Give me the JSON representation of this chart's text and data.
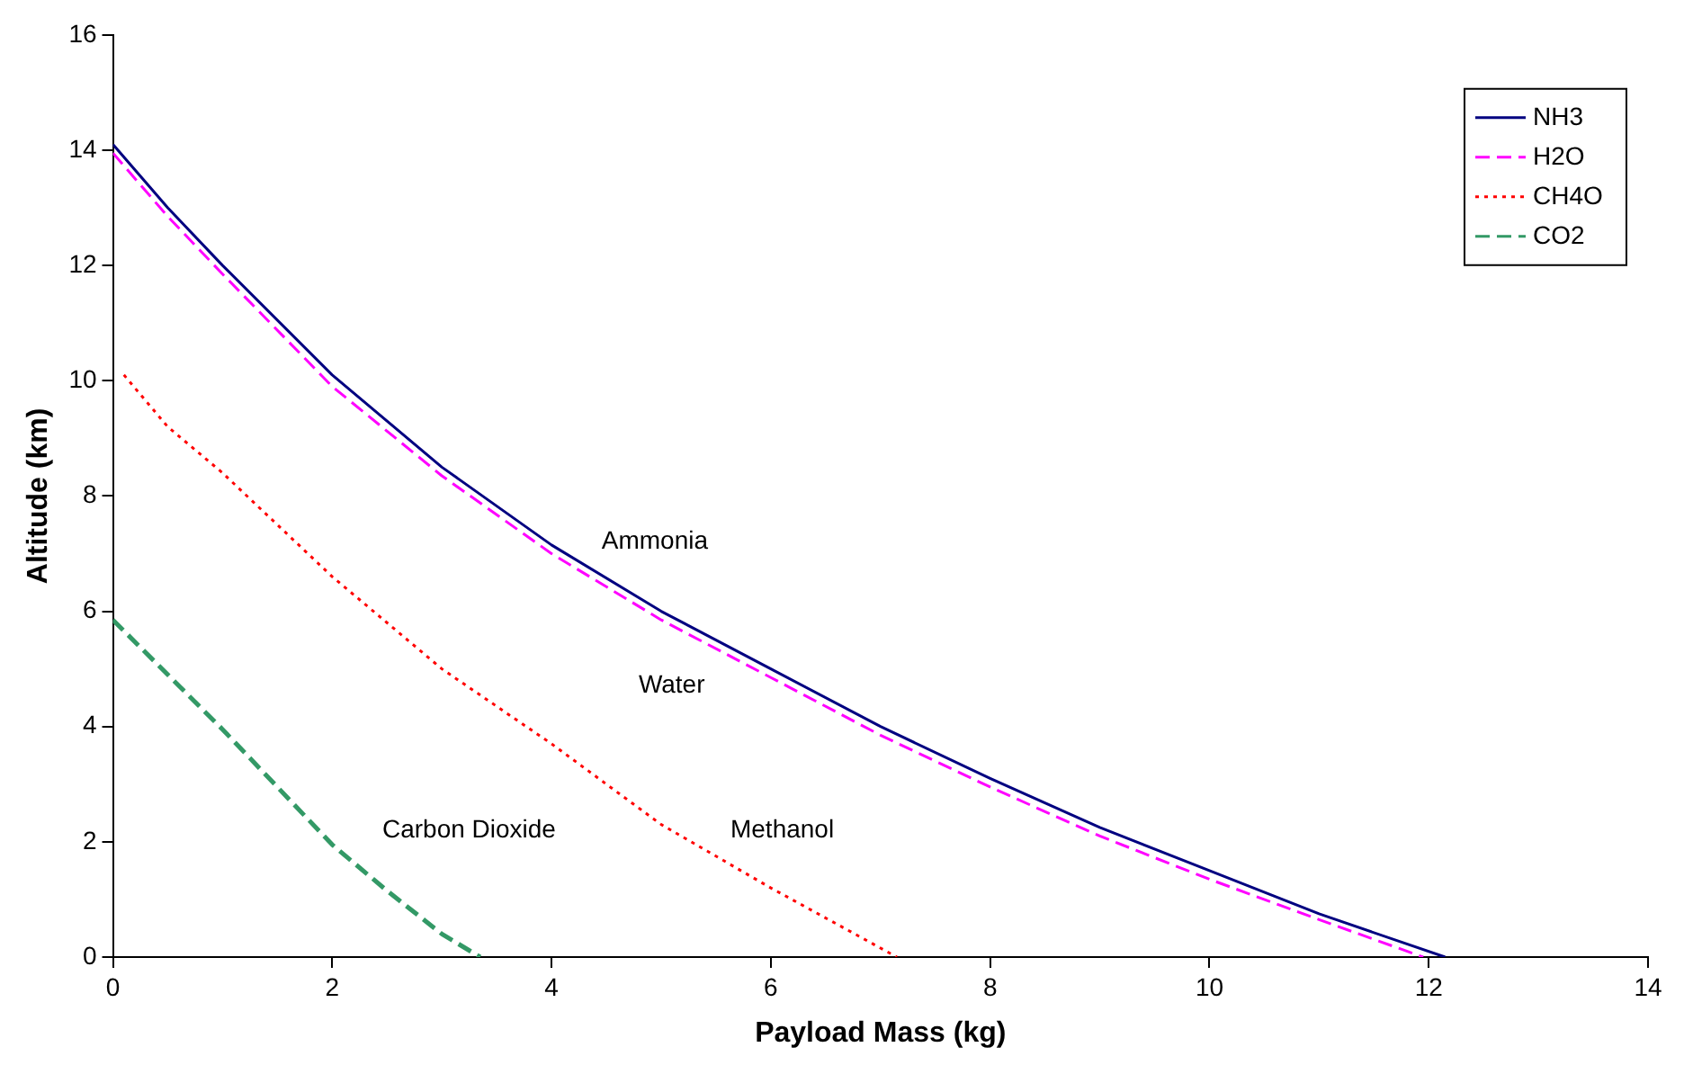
{
  "chart_data": {
    "type": "line",
    "xlabel": "Payload Mass (kg)",
    "ylabel": "Altitude (km)",
    "xlim": [
      0,
      14
    ],
    "xticks": [
      0,
      2,
      4,
      6,
      8,
      10,
      12,
      14
    ],
    "ylim": [
      0,
      16
    ],
    "yticks": [
      0,
      2,
      4,
      6,
      8,
      10,
      12,
      14,
      16
    ],
    "grid": false,
    "legend": "top right",
    "marker": "none",
    "series": [
      {
        "name": "NH3",
        "color": "#000080",
        "line_style": "solid",
        "x": [
          0,
          0.5,
          1,
          2,
          3,
          4,
          5,
          6,
          7,
          8,
          9,
          10,
          11,
          12.15
        ],
        "values": [
          14.1,
          13,
          12,
          10.1,
          8.5,
          7.15,
          6,
          5,
          4,
          3.1,
          2.25,
          1.5,
          0.75,
          0
        ]
      },
      {
        "name": "H2O",
        "color": "#ff00ff",
        "line_style": "dashed",
        "x": [
          0,
          0.5,
          1,
          2,
          3,
          4,
          5,
          6,
          7,
          8,
          9,
          10,
          11,
          11.95
        ],
        "values": [
          13.95,
          12.85,
          11.85,
          9.9,
          8.35,
          7,
          5.85,
          4.85,
          3.85,
          2.95,
          2.1,
          1.35,
          0.65,
          0
        ]
      },
      {
        "name": "CH4O",
        "color": "#ff0000",
        "line_style": "dotted",
        "x": [
          0.1,
          0.5,
          1,
          2,
          3,
          4,
          5,
          6,
          7.15
        ],
        "values": [
          10.1,
          9.2,
          8.4,
          6.6,
          5,
          3.7,
          2.3,
          1.2,
          0
        ]
      },
      {
        "name": "CO2",
        "color": "#339966",
        "line_style": "dashed",
        "x": [
          0,
          0.5,
          1,
          2,
          2.5,
          3,
          3.35
        ],
        "values": [
          5.85,
          4.9,
          3.95,
          1.95,
          1.15,
          0.4,
          0
        ]
      }
    ],
    "annotations": [
      "Ammonia",
      "Water",
      "Methanol",
      "Carbon Dioxide"
    ]
  }
}
